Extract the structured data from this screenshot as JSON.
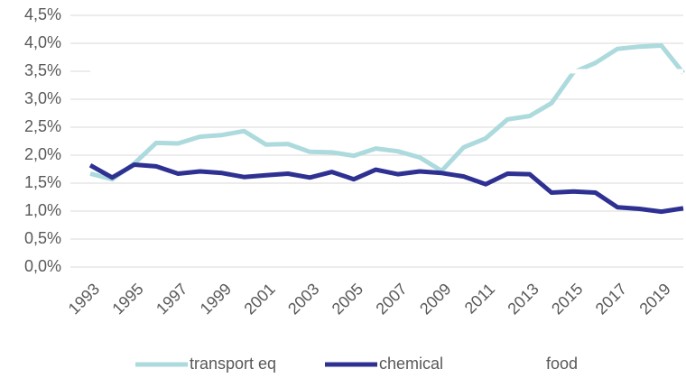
{
  "chart_data": {
    "type": "line",
    "categories": [
      "1993",
      null,
      "1995",
      null,
      "1997",
      null,
      "1999",
      null,
      "2001",
      null,
      "2003",
      null,
      "2005",
      null,
      "2007",
      null,
      "2009",
      null,
      "2011",
      null,
      "2013",
      null,
      "2015",
      null,
      "2017",
      null,
      "2019",
      null
    ],
    "series": [
      {
        "name": "transport eq",
        "color": "#acdadd",
        "values": [
          1.67,
          1.57,
          1.85,
          2.22,
          2.21,
          2.33,
          2.36,
          2.43,
          2.19,
          2.2,
          2.06,
          2.05,
          1.99,
          2.12,
          2.07,
          1.96,
          1.72,
          2.14,
          2.3,
          2.64,
          2.7,
          2.93,
          3.48,
          3.65,
          3.9,
          3.94,
          3.96,
          3.47
        ]
      },
      {
        "name": "chemical",
        "color": "#2e3192",
        "values": [
          1.82,
          1.6,
          1.83,
          1.8,
          1.67,
          1.71,
          1.68,
          1.61,
          1.64,
          1.67,
          1.6,
          1.7,
          1.57,
          1.74,
          1.66,
          1.71,
          1.68,
          1.62,
          1.48,
          1.67,
          1.66,
          1.33,
          1.35,
          1.33,
          1.07,
          1.04,
          0.99,
          1.05
        ]
      },
      {
        "name": "food",
        "color": "#ffffff",
        "values": [
          3.5,
          3.5,
          3.51,
          3.5,
          3.5,
          3.49,
          3.5,
          3.5,
          3.5,
          3.5,
          3.5,
          3.5,
          3.5,
          3.5,
          3.5,
          3.51,
          3.5,
          3.5,
          3.5,
          3.5,
          3.5,
          3.5,
          3.5,
          3.5,
          3.5,
          3.5,
          3.5,
          3.5
        ]
      }
    ],
    "ylim": [
      0,
      4.5
    ],
    "yticks": [
      {
        "value": 0,
        "label": "0,0%"
      },
      {
        "value": 0.5,
        "label": "0,5%"
      },
      {
        "value": 1,
        "label": "1,0%"
      },
      {
        "value": 1.5,
        "label": "1,5%"
      },
      {
        "value": 2,
        "label": "2,0%"
      },
      {
        "value": 2.5,
        "label": "2,5%"
      },
      {
        "value": 3,
        "label": "3,0%"
      },
      {
        "value": 3.5,
        "label": "3,5%"
      },
      {
        "value": 4,
        "label": "4,0%"
      },
      {
        "value": 4.5,
        "label": "4,5%"
      }
    ],
    "grid": true,
    "legend": "bottom"
  }
}
